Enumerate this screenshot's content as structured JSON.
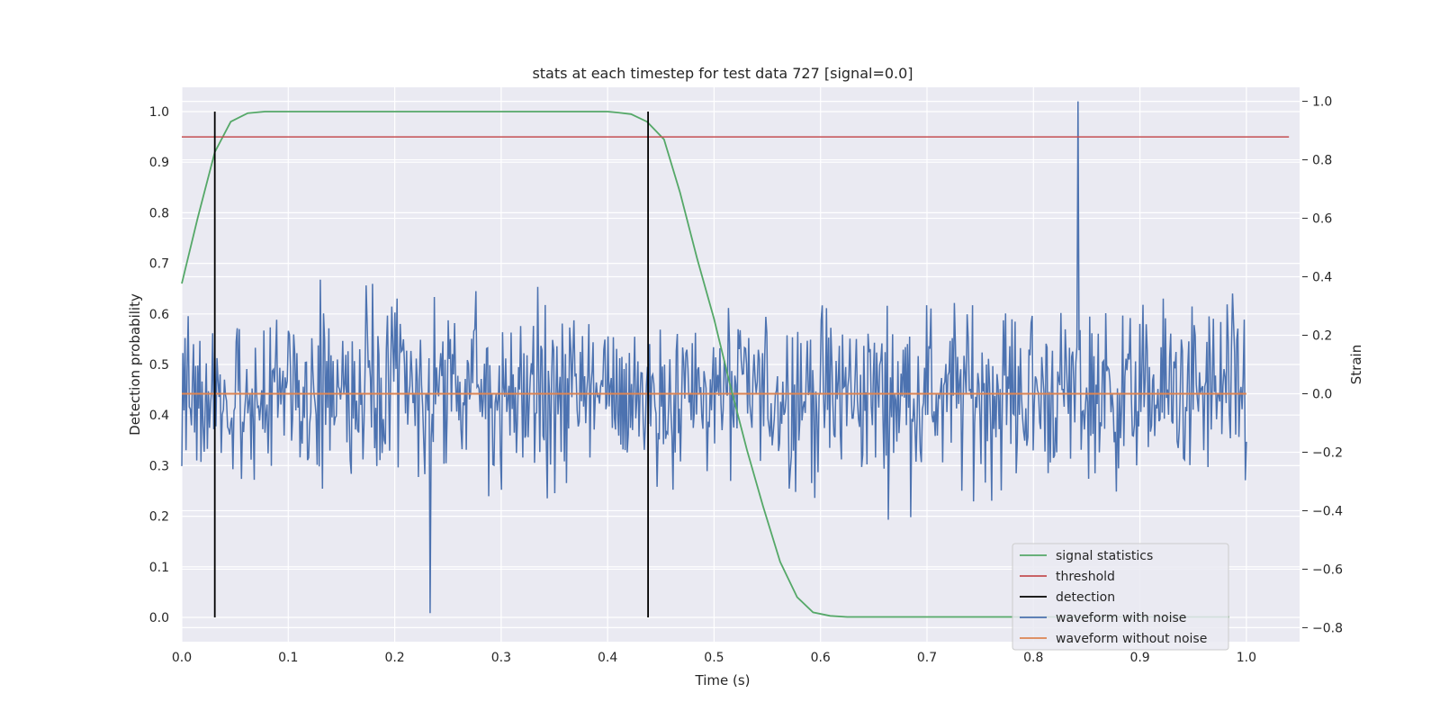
{
  "chart_data": {
    "type": "line",
    "title": "stats at each timestep for test data 727 [signal=0.0]",
    "xlabel": "Time (s)",
    "ylabel_left": "Detection probability",
    "ylabel_right": "Strain",
    "xlim": [
      0.0,
      1.05
    ],
    "ylim_left": [
      -0.048,
      1.048
    ],
    "ylim_right": [
      -0.848,
      1.048
    ],
    "x_ticks": [
      "0.0",
      "0.1",
      "0.2",
      "0.3",
      "0.4",
      "0.5",
      "0.6",
      "0.7",
      "0.8",
      "0.9",
      "1.0"
    ],
    "y_ticks_left": [
      "0.0",
      "0.1",
      "0.2",
      "0.3",
      "0.4",
      "0.5",
      "0.6",
      "0.7",
      "0.8",
      "0.9",
      "1.0"
    ],
    "y_ticks_right": [
      "−0.8",
      "−0.6",
      "−0.4",
      "−0.2",
      "0.0",
      "0.2",
      "0.4",
      "0.6",
      "0.8",
      "1.0"
    ],
    "grid": true,
    "legend_position": "bottom-right",
    "series": [
      {
        "name": "signal statistics",
        "axis": "left",
        "color": "#55a868",
        "x": [
          0.0,
          0.015,
          0.031,
          0.046,
          0.062,
          0.078,
          0.1,
          0.2,
          0.3,
          0.4,
          0.41,
          0.422,
          0.437,
          0.453,
          0.468,
          0.484,
          0.5,
          0.515,
          0.531,
          0.546,
          0.562,
          0.578,
          0.593,
          0.609,
          0.625,
          0.7,
          0.8,
          0.9,
          0.984
        ],
        "values": [
          0.66,
          0.79,
          0.92,
          0.98,
          0.997,
          1.0,
          1.0,
          1.0,
          1.0,
          1.0,
          0.998,
          0.995,
          0.98,
          0.945,
          0.84,
          0.71,
          0.59,
          0.46,
          0.33,
          0.22,
          0.11,
          0.04,
          0.01,
          0.003,
          0.001,
          0.001,
          0.001,
          0.001,
          0.001
        ]
      },
      {
        "name": "threshold",
        "axis": "left",
        "color": "#c44e52",
        "x": [
          0.0,
          1.04
        ],
        "values": [
          0.95,
          0.95
        ]
      },
      {
        "name": "detection",
        "axis": "left",
        "color": "#000000",
        "x": [
          0.031,
          0.438
        ],
        "values": [
          0.0,
          1.0
        ]
      },
      {
        "name": "waveform with noise",
        "axis": "right",
        "color": "#4c72b0",
        "x_range": [
          0.0,
          1.0
        ],
        "points": 1000,
        "amplitude_range": [
          -0.75,
          1.0
        ],
        "peak": {
          "x": 0.842,
          "value": 1.0
        },
        "min": {
          "x": 0.233,
          "value": -0.75
        }
      },
      {
        "name": "waveform without noise",
        "axis": "right",
        "color": "#dd8452",
        "x": [
          0.0,
          1.0
        ],
        "values": [
          0.0,
          0.0
        ]
      }
    ]
  }
}
